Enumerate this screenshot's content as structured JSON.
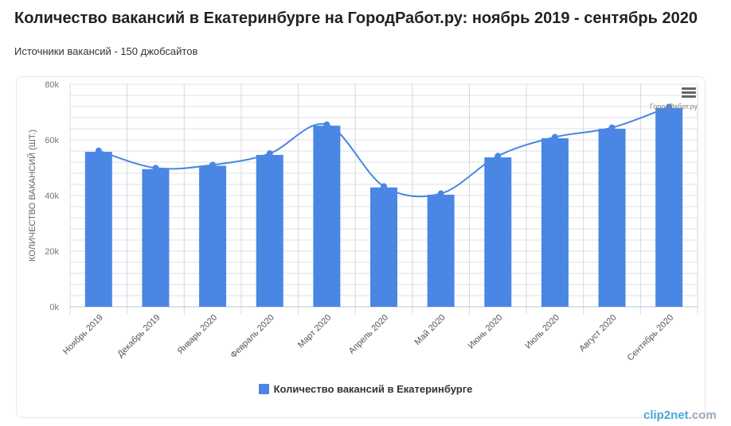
{
  "title": "Количество вакансий в Екатеринбурге на ГородРабот.ру: ноябрь 2019 - сентябрь 2020",
  "subtitle": "Источники вакансий - 150 джобсайтов",
  "credit": "ГородРабот.ру",
  "watermark": {
    "a": "clip2net",
    "b": ".com"
  },
  "menu_icon": "hamburger-icon",
  "chart_data": {
    "type": "bar",
    "ylabel": "КОЛИЧЕСТВО ВАКАНСИЙ (ШТ.)",
    "ylim": [
      0,
      80000
    ],
    "yticks": [
      "0k",
      "20k",
      "40k",
      "60k",
      "80k"
    ],
    "grid": true,
    "legend_position": "bottom",
    "bar_color": "#4a86e4",
    "categories": [
      "Ноябрь 2019",
      "Декабрь 2019",
      "Январь 2020",
      "Февраль 2020",
      "Март 2020",
      "Апрель 2020",
      "Май 2020",
      "Июнь 2020",
      "Июль 2020",
      "Август 2020",
      "Сентябрь 2020"
    ],
    "series": [
      {
        "name": "Количество вакансий в Екатеринбурге",
        "type": "bar",
        "values": [
          55700,
          49500,
          50700,
          54600,
          65100,
          42900,
          40300,
          53700,
          60600,
          64000,
          71500
        ]
      },
      {
        "type": "spline",
        "values": [
          56100,
          49900,
          51000,
          55100,
          65500,
          43300,
          40700,
          54200,
          61000,
          64400,
          71900
        ]
      }
    ]
  }
}
